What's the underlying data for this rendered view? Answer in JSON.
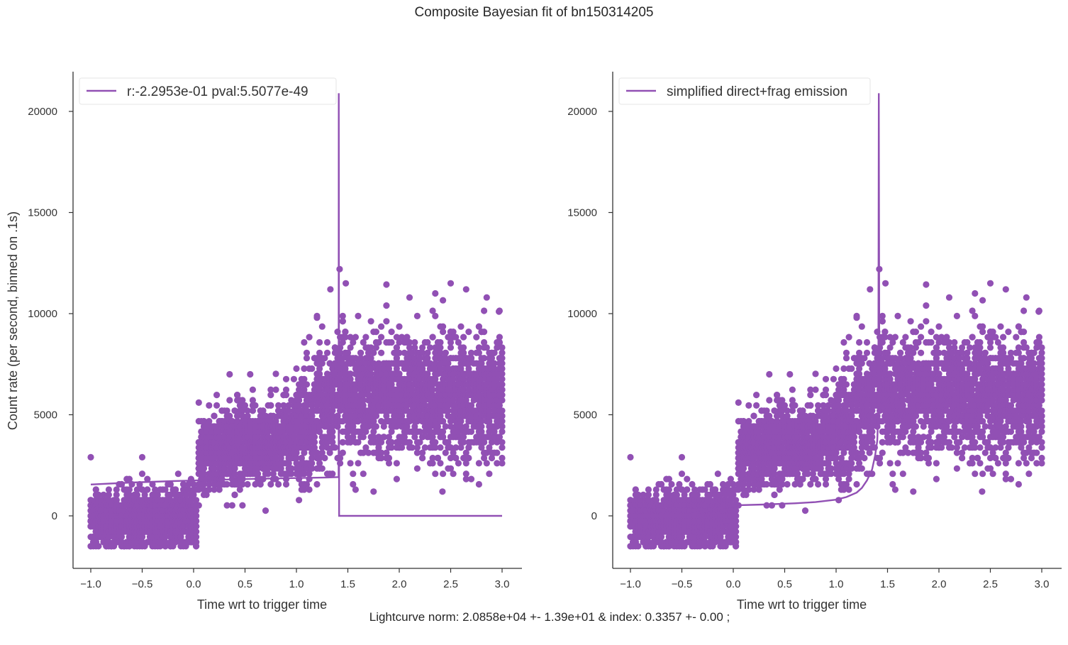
{
  "figure": {
    "title": "Composite Bayesian fit of bn150314205",
    "footnote": "Lightcurve norm: 2.0858e+04 +- 1.39e+01 & index: 0.3357 +- 0.00 ;"
  },
  "colors": {
    "series": "#9150b4",
    "axis": "#333333"
  },
  "chart_data": [
    {
      "type": "scatter",
      "xlabel": "Time wrt to trigger time",
      "ylabel": "Count rate (per second, binned on .1s)",
      "xlim": [
        -1.2,
        3.2
      ],
      "ylim": [
        -2600,
        22000
      ],
      "xticks": [
        "−1.0",
        "−0.5",
        "0.0",
        "0.5",
        "1.0",
        "1.5",
        "2.0",
        "2.5",
        "3.0"
      ],
      "yticks": [
        "0",
        "5000",
        "10000",
        "15000",
        "20000"
      ],
      "grid": false,
      "legend": {
        "position": "top-left",
        "entries": [
          "r:-2.2953e-01  pval:5.5077e-49"
        ]
      },
      "series": [
        {
          "name": "r:-2.2953e-01  pval:5.5077e-49",
          "kind": "line",
          "x": [
            -1.0,
            -0.6,
            -0.2,
            0.2,
            0.6,
            1.0,
            1.3,
            1.41,
            1.412,
            1.415,
            1.42,
            2.0,
            3.0
          ],
          "y": [
            1550,
            1650,
            1720,
            1780,
            1830,
            1870,
            1900,
            1920,
            20900,
            0,
            0,
            0,
            0
          ]
        },
        {
          "name": "data",
          "kind": "points",
          "description": "binned count-rate samples (~4000 points per panel)",
          "envelope": [
            {
              "x": -1.0,
              "y_low": -1500,
              "y_high": 2900
            },
            {
              "x": 0.0,
              "y_low": -1500,
              "y_high": 2500
            },
            {
              "x": 0.05,
              "y_low": 0,
              "y_high": 5600
            },
            {
              "x": 0.5,
              "y_low": 0,
              "y_high": 7000
            },
            {
              "x": 1.0,
              "y_low": 1200,
              "y_high": 7600
            },
            {
              "x": 1.2,
              "y_low": 1500,
              "y_high": 11200
            },
            {
              "x": 1.42,
              "y_low": 2800,
              "y_high": 12200
            },
            {
              "x": 2.0,
              "y_low": 1200,
              "y_high": 10800
            },
            {
              "x": 2.5,
              "y_low": 1200,
              "y_high": 11500
            },
            {
              "x": 3.0,
              "y_low": 1800,
              "y_high": 10100
            }
          ]
        }
      ]
    },
    {
      "type": "scatter",
      "xlabel": "Time wrt to trigger time",
      "ylabel": "",
      "xlim": [
        -1.2,
        3.2
      ],
      "ylim": [
        -2600,
        22000
      ],
      "xticks": [
        "−1.0",
        "−0.5",
        "0.0",
        "0.5",
        "1.0",
        "1.5",
        "2.0",
        "2.5",
        "3.0"
      ],
      "yticks": [
        "0",
        "5000",
        "10000",
        "15000",
        "20000"
      ],
      "grid": false,
      "legend": {
        "position": "top-left",
        "entries": [
          "simplified direct+frag emission"
        ]
      },
      "series": [
        {
          "name": "simplified direct+frag emission",
          "kind": "line",
          "x": [
            -1.0,
            -0.5,
            0.0,
            0.3,
            0.6,
            0.8,
            1.0,
            1.1,
            1.2,
            1.25,
            1.3,
            1.35,
            1.38,
            1.4,
            1.41,
            1.415,
            1.42,
            1.425
          ],
          "y": [
            0,
            0,
            520,
            560,
            620,
            680,
            800,
            930,
            1150,
            1380,
            1750,
            2300,
            3000,
            3700,
            5000,
            20900,
            8000,
            5500
          ]
        },
        {
          "name": "data",
          "kind": "points",
          "description": "same binned count-rate samples as left panel"
        }
      ]
    }
  ]
}
